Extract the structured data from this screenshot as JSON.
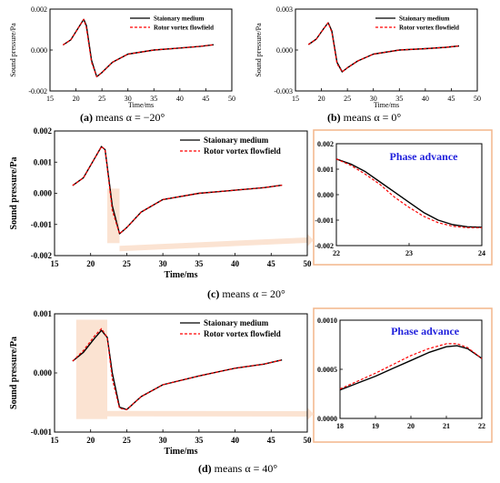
{
  "captions": {
    "a": {
      "letter": "(a)",
      "text": " means α = −20°"
    },
    "b": {
      "letter": "(b)",
      "text": " means α = 0°"
    },
    "c": {
      "letter": "(c)",
      "text": " means α = 20°"
    },
    "d": {
      "letter": "(d)",
      "text": " means α = 40°"
    }
  },
  "colors": {
    "stationary": "#000000",
    "rotor": "#ff0000",
    "highlight": "#fbe3d2",
    "frame": "#f3b58a",
    "annotation": "#1f1fdc"
  },
  "annotation": "Phase advance",
  "legend": [
    "Staionary medium",
    "Rotor vortex flowfield"
  ],
  "chart_data": [
    {
      "id": "a",
      "type": "line",
      "xlabel": "Time/ms",
      "ylabel": "Sound pressure/Pa",
      "xlim": [
        15,
        50
      ],
      "ylim": [
        -0.002,
        0.002
      ],
      "xticks": [
        "15",
        "20",
        "25",
        "30",
        "35",
        "40",
        "45",
        "50"
      ],
      "yticks": [
        "-0.002",
        "0.000",
        "0.002"
      ],
      "legend_position": "top-right",
      "series": [
        {
          "name": "Staionary medium",
          "style": "solid",
          "x": [
            17.5,
            19,
            20.5,
            21.5,
            22,
            23,
            24,
            25,
            27,
            30,
            35,
            40,
            44,
            46.5
          ],
          "y": [
            0.00025,
            0.0005,
            0.0011,
            0.0015,
            0.0012,
            -0.0005,
            -0.0013,
            -0.0011,
            -0.0006,
            -0.0002,
            0.0,
            0.0001,
            0.00018,
            0.00026
          ]
        },
        {
          "name": "Rotor vortex flowfield",
          "style": "dashed",
          "x": [
            17.5,
            19,
            20.5,
            21.5,
            22,
            23,
            24,
            25,
            27,
            30,
            35,
            40,
            44,
            46.5
          ],
          "y": [
            0.00025,
            0.0005,
            0.0011,
            0.0015,
            0.0011,
            -0.0006,
            -0.0013,
            -0.0011,
            -0.0006,
            -0.0002,
            0.0,
            0.0001,
            0.00018,
            0.00026
          ]
        }
      ]
    },
    {
      "id": "b",
      "type": "line",
      "xlabel": "Time/ms",
      "ylabel": "Sound pressure/Pa",
      "xlim": [
        15,
        50
      ],
      "ylim": [
        -0.003,
        0.003
      ],
      "xticks": [
        "15",
        "20",
        "25",
        "30",
        "35",
        "40",
        "45",
        "50"
      ],
      "yticks": [
        "-0.003",
        "0.000",
        "0.003"
      ],
      "legend_position": "top-right",
      "series": [
        {
          "name": "Staionary medium",
          "style": "solid",
          "x": [
            17.5,
            19,
            20.5,
            21.3,
            22,
            23,
            24,
            25,
            27,
            30,
            35,
            40,
            44,
            46.5
          ],
          "y": [
            0.0004,
            0.0008,
            0.0016,
            0.002,
            0.0014,
            -0.0009,
            -0.0016,
            -0.0013,
            -0.0008,
            -0.0003,
            0.0,
            0.0001,
            0.0002,
            0.0003
          ]
        },
        {
          "name": "Rotor vortex flowfield",
          "style": "dashed",
          "x": [
            17.5,
            19,
            20.5,
            21.3,
            22,
            23,
            24,
            25,
            27,
            30,
            35,
            40,
            44,
            46.5
          ],
          "y": [
            0.0004,
            0.0008,
            0.0016,
            0.002,
            0.0013,
            -0.001,
            -0.0016,
            -0.0013,
            -0.0008,
            -0.0003,
            0.0,
            0.0001,
            0.0002,
            0.0003
          ]
        }
      ]
    },
    {
      "id": "c",
      "type": "line",
      "xlabel": "Time/ms",
      "ylabel": "Sound pressure/Pa",
      "xlim": [
        15,
        50
      ],
      "ylim": [
        -0.002,
        0.002
      ],
      "xticks": [
        "15",
        "20",
        "25",
        "30",
        "35",
        "40",
        "45",
        "50"
      ],
      "yticks": [
        "-0.002",
        "-0.001",
        "0.000",
        "0.001",
        "0.002"
      ],
      "legend_position": "top-right",
      "series": [
        {
          "name": "Staionary medium",
          "style": "solid",
          "x": [
            17.5,
            19,
            20.5,
            21.5,
            22,
            23,
            24,
            25,
            27,
            30,
            35,
            40,
            44,
            46.5
          ],
          "y": [
            0.00025,
            0.0005,
            0.0011,
            0.0015,
            0.0014,
            -0.0004,
            -0.0013,
            -0.0011,
            -0.0006,
            -0.0002,
            0.0,
            0.0001,
            0.00018,
            0.00026
          ]
        },
        {
          "name": "Rotor vortex flowfield",
          "style": "dashed",
          "x": [
            17.5,
            19,
            20.5,
            21.5,
            22,
            23,
            24,
            25,
            27,
            30,
            35,
            40,
            44,
            46.5
          ],
          "y": [
            0.00025,
            0.0005,
            0.0011,
            0.0015,
            0.0014,
            -0.00055,
            -0.0013,
            -0.0011,
            -0.0006,
            -0.0002,
            0.0,
            0.0001,
            0.00018,
            0.00026
          ]
        }
      ],
      "highlight": {
        "x": [
          22.3,
          24
        ],
        "y": [
          -0.0016,
          0.00015
        ]
      }
    },
    {
      "id": "c-zoom",
      "type": "line",
      "xlabel": "",
      "ylabel": "",
      "xlim": [
        22,
        24
      ],
      "ylim": [
        -0.002,
        0.002
      ],
      "xticks": [
        "22",
        "23",
        "24"
      ],
      "yticks": [
        "-0.002",
        "-0.001",
        "0.000",
        "0.001",
        "0.002"
      ],
      "annotation": "Phase advance",
      "series": [
        {
          "name": "Staionary medium",
          "style": "solid",
          "x": [
            22,
            22.2,
            22.4,
            22.6,
            22.8,
            23,
            23.2,
            23.4,
            23.6,
            23.8,
            24
          ],
          "y": [
            0.0014,
            0.0012,
            0.0009,
            0.0005,
            0.0001,
            -0.0003,
            -0.0007,
            -0.001,
            -0.00118,
            -0.00126,
            -0.00128
          ]
        },
        {
          "name": "Rotor vortex flowfield",
          "style": "dashed",
          "x": [
            22,
            22.2,
            22.4,
            22.6,
            22.8,
            23,
            23.2,
            23.4,
            23.6,
            23.8,
            24
          ],
          "y": [
            0.0014,
            0.00115,
            0.0008,
            0.0004,
            -0.0001,
            -0.0005,
            -0.00085,
            -0.0011,
            -0.00124,
            -0.0013,
            -0.0013
          ]
        }
      ]
    },
    {
      "id": "d",
      "type": "line",
      "xlabel": "Time/ms",
      "ylabel": "Sound pressure/Pa",
      "xlim": [
        15,
        50
      ],
      "ylim": [
        -0.001,
        0.001
      ],
      "xticks": [
        "15",
        "20",
        "25",
        "30",
        "35",
        "40",
        "45",
        "50"
      ],
      "yticks": [
        "-0.001",
        "0.000",
        "0.001"
      ],
      "legend_position": "top-right",
      "series": [
        {
          "name": "Staionary medium",
          "style": "solid",
          "x": [
            17.5,
            19,
            20.5,
            21.5,
            22.3,
            23,
            24,
            25,
            27,
            30,
            35,
            40,
            44,
            46.5
          ],
          "y": [
            0.0002,
            0.00035,
            0.00058,
            0.00072,
            0.0006,
            0.0,
            -0.00058,
            -0.00062,
            -0.0004,
            -0.0002,
            -5e-05,
            8e-05,
            0.00015,
            0.00022
          ]
        },
        {
          "name": "Rotor vortex flowfield",
          "style": "dashed",
          "x": [
            17.5,
            19,
            20.5,
            21.5,
            22.3,
            23,
            24,
            25,
            27,
            30,
            35,
            40,
            44,
            46.5
          ],
          "y": [
            0.0002,
            0.00038,
            0.00062,
            0.00075,
            0.0006,
            -0.0001,
            -0.0006,
            -0.00062,
            -0.0004,
            -0.0002,
            -5e-05,
            8e-05,
            0.00015,
            0.00022
          ]
        }
      ],
      "highlight": {
        "x": [
          18,
          22.3
        ],
        "y": [
          -0.00078,
          0.0009
        ]
      }
    },
    {
      "id": "d-zoom",
      "type": "line",
      "xlabel": "",
      "ylabel": "",
      "xlim": [
        18,
        22
      ],
      "ylim": [
        0.0,
        0.001
      ],
      "xticks": [
        "18",
        "19",
        "20",
        "21",
        "22"
      ],
      "yticks": [
        "0.0000",
        "0.0005",
        "0.0010"
      ],
      "annotation": "Phase advance",
      "series": [
        {
          "name": "Staionary medium",
          "style": "solid",
          "x": [
            18,
            18.5,
            19,
            19.5,
            20,
            20.5,
            21,
            21.3,
            21.6,
            22
          ],
          "y": [
            0.00029,
            0.00036,
            0.00043,
            0.00051,
            0.00059,
            0.00067,
            0.00073,
            0.00074,
            0.00071,
            0.00061
          ]
        },
        {
          "name": "Rotor vortex flowfield",
          "style": "dashed",
          "x": [
            18,
            18.5,
            19,
            19.5,
            20,
            20.5,
            21,
            21.3,
            21.6,
            22
          ],
          "y": [
            0.0003,
            0.00038,
            0.00046,
            0.00055,
            0.00064,
            0.00071,
            0.00076,
            0.00076,
            0.00072,
            0.00061
          ]
        }
      ]
    }
  ]
}
